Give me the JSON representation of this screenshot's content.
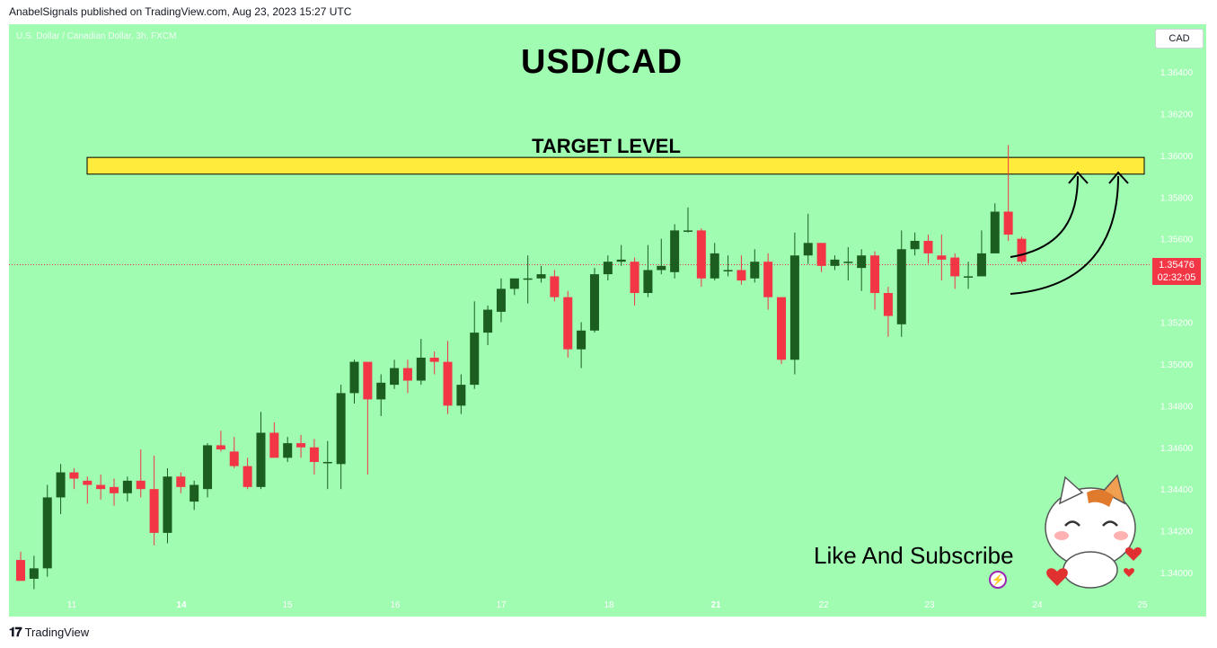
{
  "header": {
    "publisher_line": "AnabelSignals published on TradingView.com, Aug 23, 2023 15:27 UTC"
  },
  "symbol_info": "U.S. Dollar / Canadian Dollar, 3h, FXCM",
  "currency_button": "CAD",
  "title": "USD/CAD",
  "target_label": "TARGET LEVEL",
  "cta": "Like And Subscribe",
  "last_price": {
    "value": "1.35476",
    "countdown": "02:32:05"
  },
  "footer": {
    "brand": "TradingView"
  },
  "colors": {
    "background": "#9ffcb1",
    "up": "#1b5e20",
    "down": "#f23645",
    "target_zone": "#ffeb3b"
  },
  "chart_data": {
    "type": "candlestick",
    "title": "USD/CAD",
    "ylim": [
      1.3385,
      1.3655
    ],
    "y_ticks": [
      "1.36400",
      "1.36200",
      "1.36000",
      "1.35800",
      "1.35600",
      "1.35400",
      "1.35200",
      "1.35000",
      "1.34800",
      "1.34600",
      "1.34400",
      "1.34200",
      "1.34000"
    ],
    "x_ticks": [
      "11",
      "14",
      "15",
      "16",
      "17",
      "18",
      "21",
      "22",
      "23",
      "24",
      "25"
    ],
    "target_zone": {
      "low": 1.3594,
      "high": 1.3599,
      "label": "TARGET LEVEL"
    },
    "last_price": 1.35476,
    "candles": [
      {
        "o": 1.3406,
        "h": 1.341,
        "l": 1.3396,
        "c": 1.3396
      },
      {
        "o": 1.3397,
        "h": 1.3408,
        "l": 1.3392,
        "c": 1.3402
      },
      {
        "o": 1.3402,
        "h": 1.3442,
        "l": 1.3398,
        "c": 1.3436
      },
      {
        "o": 1.3436,
        "h": 1.3452,
        "l": 1.3428,
        "c": 1.3448
      },
      {
        "o": 1.3448,
        "h": 1.345,
        "l": 1.344,
        "c": 1.3445
      },
      {
        "o": 1.3444,
        "h": 1.3446,
        "l": 1.3433,
        "c": 1.3442
      },
      {
        "o": 1.3442,
        "h": 1.3447,
        "l": 1.3435,
        "c": 1.344
      },
      {
        "o": 1.3441,
        "h": 1.3445,
        "l": 1.3432,
        "c": 1.3438
      },
      {
        "o": 1.3438,
        "h": 1.3446,
        "l": 1.3434,
        "c": 1.3444
      },
      {
        "o": 1.3444,
        "h": 1.3459,
        "l": 1.3436,
        "c": 1.344
      },
      {
        "o": 1.344,
        "h": 1.3456,
        "l": 1.3413,
        "c": 1.3419
      },
      {
        "o": 1.3419,
        "h": 1.345,
        "l": 1.3414,
        "c": 1.3446
      },
      {
        "o": 1.3446,
        "h": 1.3448,
        "l": 1.3438,
        "c": 1.3441
      },
      {
        "o": 1.3434,
        "h": 1.3444,
        "l": 1.343,
        "c": 1.3442
      },
      {
        "o": 1.344,
        "h": 1.3462,
        "l": 1.3436,
        "c": 1.3461
      },
      {
        "o": 1.3461,
        "h": 1.3468,
        "l": 1.3458,
        "c": 1.3459
      },
      {
        "o": 1.3458,
        "h": 1.3465,
        "l": 1.345,
        "c": 1.3451
      },
      {
        "o": 1.3451,
        "h": 1.3455,
        "l": 1.344,
        "c": 1.3441
      },
      {
        "o": 1.3441,
        "h": 1.3477,
        "l": 1.344,
        "c": 1.3467
      },
      {
        "o": 1.3467,
        "h": 1.3472,
        "l": 1.3455,
        "c": 1.3455
      },
      {
        "o": 1.3455,
        "h": 1.3465,
        "l": 1.3453,
        "c": 1.3462
      },
      {
        "o": 1.3462,
        "h": 1.3466,
        "l": 1.3455,
        "c": 1.346
      },
      {
        "o": 1.346,
        "h": 1.3464,
        "l": 1.3447,
        "c": 1.3453
      },
      {
        "o": 1.3453,
        "h": 1.3463,
        "l": 1.344,
        "c": 1.3453
      },
      {
        "o": 1.3452,
        "h": 1.349,
        "l": 1.344,
        "c": 1.3486
      },
      {
        "o": 1.3486,
        "h": 1.3502,
        "l": 1.3481,
        "c": 1.3501
      },
      {
        "o": 1.3501,
        "h": 1.3501,
        "l": 1.3447,
        "c": 1.3483
      },
      {
        "o": 1.3483,
        "h": 1.3495,
        "l": 1.3475,
        "c": 1.3491
      },
      {
        "o": 1.349,
        "h": 1.3502,
        "l": 1.3488,
        "c": 1.3498
      },
      {
        "o": 1.3498,
        "h": 1.3502,
        "l": 1.3486,
        "c": 1.3492
      },
      {
        "o": 1.3492,
        "h": 1.3512,
        "l": 1.349,
        "c": 1.3503
      },
      {
        "o": 1.3503,
        "h": 1.3506,
        "l": 1.3495,
        "c": 1.3501
      },
      {
        "o": 1.3501,
        "h": 1.3511,
        "l": 1.3476,
        "c": 1.348
      },
      {
        "o": 1.348,
        "h": 1.3495,
        "l": 1.3476,
        "c": 1.349
      },
      {
        "o": 1.349,
        "h": 1.353,
        "l": 1.3488,
        "c": 1.3515
      },
      {
        "o": 1.3515,
        "h": 1.3528,
        "l": 1.3509,
        "c": 1.3526
      },
      {
        "o": 1.3525,
        "h": 1.3541,
        "l": 1.352,
        "c": 1.3536
      },
      {
        "o": 1.3536,
        "h": 1.354,
        "l": 1.3533,
        "c": 1.3541
      },
      {
        "o": 1.3541,
        "h": 1.3552,
        "l": 1.3529,
        "c": 1.3541
      },
      {
        "o": 1.3541,
        "h": 1.3547,
        "l": 1.3539,
        "c": 1.3543
      },
      {
        "o": 1.3542,
        "h": 1.3545,
        "l": 1.353,
        "c": 1.3532
      },
      {
        "o": 1.3532,
        "h": 1.3535,
        "l": 1.3503,
        "c": 1.3507
      },
      {
        "o": 1.3507,
        "h": 1.352,
        "l": 1.3498,
        "c": 1.3516
      },
      {
        "o": 1.3516,
        "h": 1.3546,
        "l": 1.3515,
        "c": 1.3543
      },
      {
        "o": 1.3543,
        "h": 1.3552,
        "l": 1.354,
        "c": 1.3549
      },
      {
        "o": 1.3549,
        "h": 1.3557,
        "l": 1.3547,
        "c": 1.355
      },
      {
        "o": 1.3549,
        "h": 1.3551,
        "l": 1.3528,
        "c": 1.3534
      },
      {
        "o": 1.3534,
        "h": 1.3557,
        "l": 1.3532,
        "c": 1.3545
      },
      {
        "o": 1.3545,
        "h": 1.356,
        "l": 1.3543,
        "c": 1.3547
      },
      {
        "o": 1.3544,
        "h": 1.3567,
        "l": 1.3541,
        "c": 1.3564
      },
      {
        "o": 1.3564,
        "h": 1.3575,
        "l": 1.3563,
        "c": 1.3564
      },
      {
        "o": 1.3564,
        "h": 1.3565,
        "l": 1.3537,
        "c": 1.3541
      },
      {
        "o": 1.3541,
        "h": 1.3558,
        "l": 1.354,
        "c": 1.3553
      },
      {
        "o": 1.3545,
        "h": 1.3552,
        "l": 1.3542,
        "c": 1.3545
      },
      {
        "o": 1.3545,
        "h": 1.3552,
        "l": 1.3538,
        "c": 1.354
      },
      {
        "o": 1.3541,
        "h": 1.3555,
        "l": 1.3539,
        "c": 1.3549
      },
      {
        "o": 1.3549,
        "h": 1.3553,
        "l": 1.3526,
        "c": 1.3532
      },
      {
        "o": 1.3532,
        "h": 1.3532,
        "l": 1.35,
        "c": 1.3502
      },
      {
        "o": 1.3502,
        "h": 1.3563,
        "l": 1.3495,
        "c": 1.3552
      },
      {
        "o": 1.3552,
        "h": 1.3572,
        "l": 1.3548,
        "c": 1.3558
      },
      {
        "o": 1.3558,
        "h": 1.3558,
        "l": 1.3544,
        "c": 1.3547
      },
      {
        "o": 1.3547,
        "h": 1.3552,
        "l": 1.3545,
        "c": 1.355
      },
      {
        "o": 1.3549,
        "h": 1.3556,
        "l": 1.354,
        "c": 1.3549
      },
      {
        "o": 1.3546,
        "h": 1.3555,
        "l": 1.3535,
        "c": 1.3552
      },
      {
        "o": 1.3552,
        "h": 1.3554,
        "l": 1.3526,
        "c": 1.3534
      },
      {
        "o": 1.3534,
        "h": 1.3537,
        "l": 1.3513,
        "c": 1.3523
      },
      {
        "o": 1.3519,
        "h": 1.3564,
        "l": 1.3513,
        "c": 1.3555
      },
      {
        "o": 1.3555,
        "h": 1.3563,
        "l": 1.3552,
        "c": 1.3559
      },
      {
        "o": 1.3559,
        "h": 1.3562,
        "l": 1.3548,
        "c": 1.3553
      },
      {
        "o": 1.3552,
        "h": 1.3562,
        "l": 1.354,
        "c": 1.355
      },
      {
        "o": 1.3551,
        "h": 1.3553,
        "l": 1.3536,
        "c": 1.3542
      },
      {
        "o": 1.3542,
        "h": 1.3549,
        "l": 1.3536,
        "c": 1.3542
      },
      {
        "o": 1.3542,
        "h": 1.3564,
        "l": 1.3542,
        "c": 1.3553
      },
      {
        "o": 1.3553,
        "h": 1.3577,
        "l": 1.3553,
        "c": 1.3573
      },
      {
        "o": 1.3573,
        "h": 1.3605,
        "l": 1.3559,
        "c": 1.3562
      },
      {
        "o": 1.356,
        "h": 1.3561,
        "l": 1.3548,
        "c": 1.3549
      }
    ]
  }
}
